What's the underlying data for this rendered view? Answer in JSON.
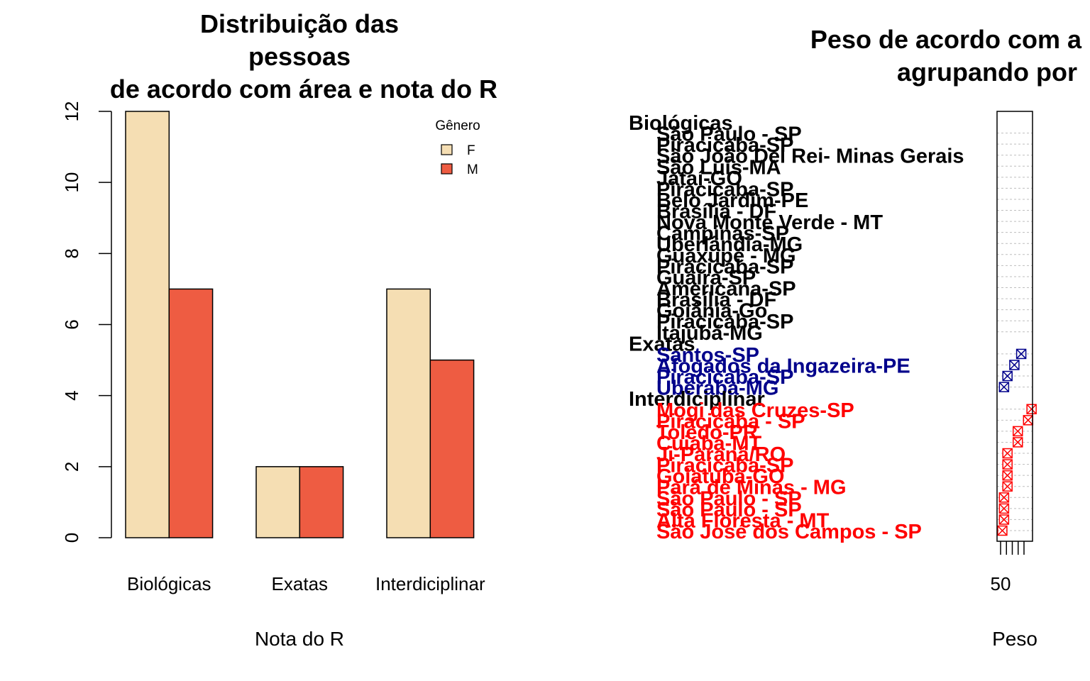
{
  "colors": {
    "F": "#F5DEB3",
    "M": "#EE5C42",
    "axis": "#000000",
    "group_colors": [
      "#000000",
      "#00008B",
      "#FF0000"
    ],
    "grid": "#BEBEBE"
  },
  "chart_data": [
    {
      "type": "bar",
      "title_lines": [
        "Distribuição das",
        "pessoas",
        "de acordo com área e nota do R"
      ],
      "xlabel": "Nota do R",
      "ylabel": "",
      "categories": [
        "Biológicas",
        "Exatas",
        "Interdiciplinar"
      ],
      "yticks": [
        "0",
        "2",
        "4",
        "6",
        "8",
        "10",
        "12"
      ],
      "ylim": [
        0,
        12
      ],
      "legend": {
        "title": "Gênero",
        "position": "top-right",
        "entries": [
          "F",
          "M"
        ]
      },
      "series": [
        {
          "name": "F",
          "values": [
            12,
            2,
            7
          ]
        },
        {
          "name": "M",
          "values": [
            7,
            2,
            5
          ]
        }
      ],
      "grid": false
    },
    {
      "type": "scatter",
      "subtype": "dotchart",
      "title_lines": [
        "Peso de acordo com a",
        "agrupando por"
      ],
      "xlabel": "Peso",
      "xticks": [
        "50"
      ],
      "grid": false,
      "groups": [
        {
          "name": "Biológicas",
          "labels": [
            "São Paulo - SP",
            "Piracicaba-SP",
            "São João Del Rei- Minas Gerais",
            "São Luís-MA",
            "Jataí-GO",
            "Piracicaba-SP",
            "Belo Jardim-PE",
            "Brasília - DF",
            "Nova Monte Verde - MT",
            "Campinas-SP",
            "Uberlândia-MG",
            "Guaxupé - MG",
            "Piracicaba-SP",
            "Guaíra-SP",
            "Americana-SP",
            "Brasília - DF",
            "Goiânia-Go",
            "Piracicaba-SP",
            "Itajubá-MG"
          ],
          "values": [
            null,
            null,
            null,
            null,
            null,
            null,
            null,
            null,
            null,
            null,
            null,
            null,
            null,
            null,
            null,
            null,
            null,
            null,
            null
          ]
        },
        {
          "name": "Exatas",
          "labels": [
            "Santos-SP",
            "Afogados da Ingazeira-PE",
            "Piracicaba-SP",
            "Uberaba-MG"
          ],
          "values": [
            56,
            54,
            52,
            51
          ]
        },
        {
          "name": "Interdiciplinar",
          "labels": [
            "Mogi das Cruzes-SP",
            "Piracicaba - SP",
            "Toledo-PR",
            "Cuiabá-MT",
            "Ji-Paraná/RO",
            "Piracicaba-SP",
            "Goiatuba-GO",
            "Pará de Minas - MG",
            "São Paulo - SP",
            "São Paulo - SP",
            "Alta Floresta - MT",
            "São José dos Campos - SP"
          ],
          "values": [
            59,
            58,
            55,
            55,
            52,
            52,
            52,
            52,
            51,
            51,
            51,
            50.5
          ]
        }
      ]
    }
  ]
}
